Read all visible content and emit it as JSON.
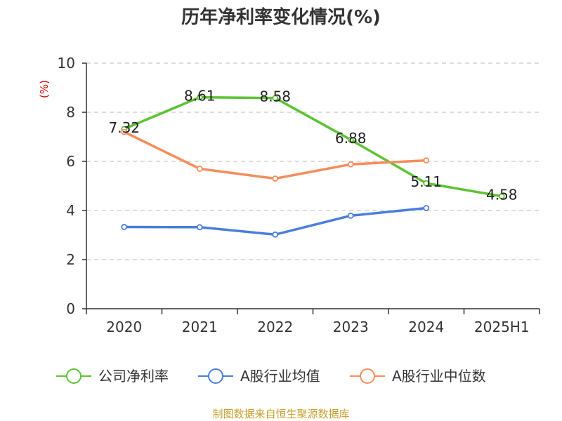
{
  "chart_data": {
    "type": "line",
    "title": "历年净利率变化情况(%)",
    "unit_label": "(%)",
    "categories": [
      "2020",
      "2021",
      "2022",
      "2023",
      "2024",
      "2025H1"
    ],
    "y_ticks": [
      "0",
      "2",
      "4",
      "6",
      "8",
      "10"
    ],
    "ylim": [
      0,
      10
    ],
    "grid": true,
    "legend_position": "bottom",
    "series": [
      {
        "name": "公司净利率",
        "color": "#5ec234",
        "values": [
          7.32,
          8.61,
          8.58,
          6.88,
          5.11,
          4.58
        ],
        "labels": [
          "7.32",
          "8.61",
          "8.58",
          "6.88",
          "5.11",
          "4.58"
        ]
      },
      {
        "name": "A股行业均值",
        "color": "#4a7fdb",
        "values": [
          3.33,
          3.32,
          3.02,
          3.79,
          4.1,
          null
        ]
      },
      {
        "name": "A股行业中位数",
        "color": "#f58d5c",
        "values": [
          7.2,
          5.7,
          5.3,
          5.88,
          6.04,
          null
        ]
      }
    ]
  },
  "source_note": "制图数据来自恒生聚源数据库"
}
